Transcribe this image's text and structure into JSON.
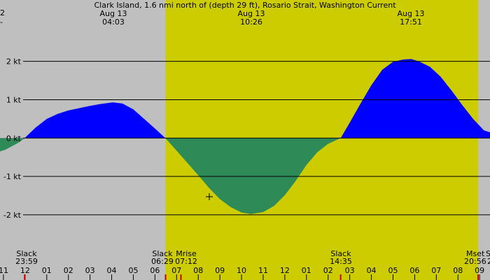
{
  "title": "Clark Island, 1.6 nmi north of (depth 29 ft), Rosario Strait, Washington Current",
  "peaks": [
    {
      "date": "Aug 13",
      "time": "04:03"
    },
    {
      "date": "Aug 13",
      "time": "10:26"
    },
    {
      "date": "Aug 13",
      "time": "17:51"
    }
  ],
  "left_edge_fragments": [
    "2",
    "-"
  ],
  "events": [
    {
      "label": "Slack",
      "time": "23:59"
    },
    {
      "label": "Slack",
      "time": "06:29"
    },
    {
      "label": "Mrise",
      "time": "07:12"
    },
    {
      "label": "Slack",
      "time": "14:35"
    },
    {
      "label": "Mset",
      "time": "20:56"
    },
    {
      "label": "S",
      "time": "2"
    }
  ],
  "hour_ticks": [
    "11",
    "12",
    "01",
    "02",
    "03",
    "04",
    "05",
    "06",
    "07",
    "08",
    "09",
    "10",
    "11",
    "12",
    "01",
    "02",
    "03",
    "04",
    "05",
    "06",
    "07",
    "08",
    "09"
  ],
  "colors": {
    "night": "#bfbfbf",
    "day": "#cccc00",
    "flood": "#0000ff",
    "ebb": "#2e8b57",
    "grid": "#000000",
    "marker": "#cc0000"
  },
  "chart_data": {
    "type": "area",
    "title": "Clark Island, 1.6 nmi north of (depth 29 ft), Rosario Strait, Washington Current",
    "ylabel": "kt",
    "yticks": [
      "2 kt",
      "1 kt",
      "0 kt",
      "-1 kt",
      "-2 kt"
    ],
    "ytick_values": [
      2,
      1,
      0,
      -1,
      -2
    ],
    "ylim": [
      -3.7,
      3.6
    ],
    "xlim": [
      -1.16,
      21.48
    ],
    "x_unit": "hours from 00:00 Aug 13",
    "daylight": [
      6.49,
      20.93
    ],
    "series": [
      {
        "x": [
          -1.16,
          -0.9,
          -0.6,
          -0.3,
          -0.02,
          0.5,
          1,
          1.5,
          2,
          2.5,
          3,
          3.5,
          4.05,
          4.5,
          5,
          5.5,
          6,
          6.48,
          7,
          7.5,
          8,
          8.5,
          9,
          9.5,
          10,
          10.43,
          11,
          11.5,
          12,
          12.5,
          13,
          13.5,
          14,
          14.58,
          15,
          15.5,
          16,
          16.5,
          17,
          17.5,
          17.85,
          18.2,
          18.7,
          19.2,
          19.7,
          20.2,
          20.7,
          21.2,
          21.48
        ],
        "y": [
          -0.35,
          -0.3,
          -0.21,
          -0.12,
          0,
          0.28,
          0.5,
          0.63,
          0.72,
          0.78,
          0.84,
          0.89,
          0.93,
          0.9,
          0.75,
          0.5,
          0.25,
          0,
          -0.33,
          -0.65,
          -0.97,
          -1.3,
          -1.59,
          -1.8,
          -1.94,
          -1.98,
          -1.93,
          -1.77,
          -1.49,
          -1.12,
          -0.7,
          -0.37,
          -0.15,
          0,
          0.4,
          0.9,
          1.38,
          1.78,
          1.99,
          2.05,
          2.06,
          2.0,
          1.86,
          1.6,
          1.24,
          0.86,
          0.5,
          0.2,
          0.15
        ]
      }
    ]
  }
}
